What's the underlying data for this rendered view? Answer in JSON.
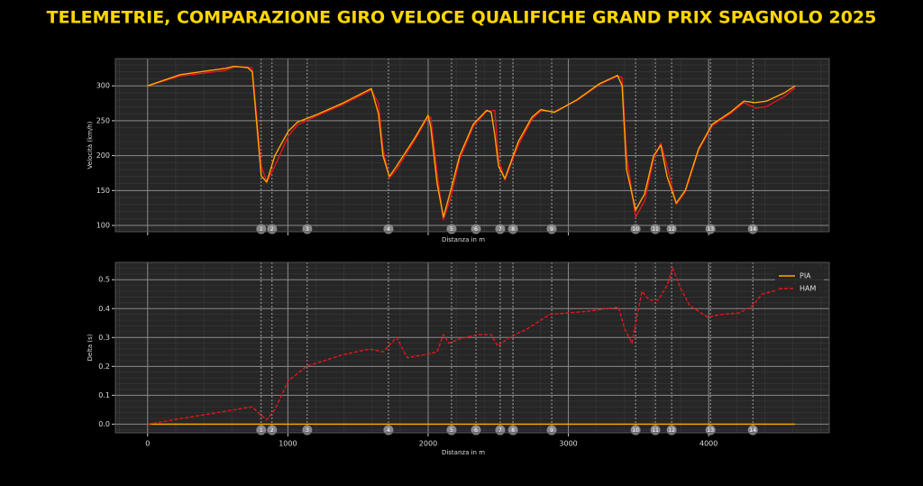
{
  "title": "TELEMETRIE, COMPARAZIONE GIRO VELOCE QUALIFICHE GRAND PRIX SPAGNOLO 2025",
  "corners": {
    "numbers": [
      1,
      2,
      3,
      4,
      5,
      6,
      7,
      8,
      9,
      10,
      11,
      12,
      13,
      14
    ],
    "distances": [
      810,
      887,
      1138,
      1717,
      2167,
      2341,
      2514,
      2605,
      2881,
      3479,
      3620,
      3736,
      4013,
      4315
    ]
  },
  "chart_data": [
    {
      "type": "line",
      "y_label": "Velocità (km/h)",
      "x_label": "Distanza in m",
      "x": [
        0,
        232,
        553,
        617,
        714,
        746,
        810,
        849,
        907,
        1003,
        1068,
        1196,
        1389,
        1595,
        1646,
        1678,
        1723,
        1775,
        1904,
        2000,
        2019,
        2064,
        2109,
        2161,
        2225,
        2322,
        2418,
        2450,
        2475,
        2502,
        2547,
        2643,
        2740,
        2804,
        2900,
        3061,
        3222,
        3350,
        3383,
        3415,
        3479,
        3543,
        3608,
        3659,
        3704,
        3769,
        3833,
        3929,
        4026,
        4154,
        4251,
        4334,
        4411,
        4540,
        4617
      ],
      "series": [
        {
          "name": "HAM",
          "color": "#e8141c",
          "values": [
            300,
            314,
            322,
            327,
            327,
            325,
            185,
            163,
            185,
            228,
            244,
            256,
            273,
            294,
            275,
            210,
            168,
            180,
            222,
            256,
            255,
            175,
            108,
            140,
            195,
            242,
            264,
            264,
            265,
            195,
            165,
            215,
            252,
            264,
            263,
            279,
            302,
            314,
            312,
            200,
            112,
            135,
            195,
            218,
            185,
            130,
            148,
            208,
            243,
            260,
            276,
            268,
            270,
            285,
            297
          ]
        },
        {
          "name": "PIA",
          "color": "#ffa500",
          "values": [
            300,
            316,
            325,
            328,
            326,
            320,
            171,
            162,
            200,
            235,
            248,
            258,
            275,
            296,
            260,
            200,
            170,
            185,
            225,
            258,
            240,
            160,
            112,
            150,
            200,
            245,
            265,
            262,
            230,
            185,
            167,
            220,
            255,
            266,
            262,
            280,
            303,
            315,
            300,
            180,
            122,
            145,
            200,
            215,
            170,
            132,
            150,
            210,
            245,
            262,
            278,
            276,
            278,
            290,
            300
          ]
        }
      ],
      "xlim": [
        -230,
        4860
      ],
      "ylim": [
        91,
        339
      ],
      "xticks": [
        0,
        1000,
        2000,
        3000,
        4000
      ],
      "yticks": [
        100,
        150,
        200,
        250,
        300
      ],
      "grid": true
    },
    {
      "type": "line",
      "y_label": "Delta (s)",
      "x_label": "Distanza in m",
      "x": [
        0,
        746,
        810,
        849,
        907,
        1003,
        1132,
        1389,
        1582,
        1678,
        1775,
        1852,
        1968,
        2064,
        2109,
        2148,
        2225,
        2354,
        2450,
        2495,
        2579,
        2707,
        2868,
        3125,
        3357,
        3402,
        3453,
        3524,
        3576,
        3640,
        3704,
        3743,
        3801,
        3865,
        3994,
        4090,
        4219,
        4315,
        4379,
        4540,
        4617
      ],
      "series": [
        {
          "name": "PIA",
          "color": "#ffa500",
          "linestyle": "solid",
          "values": [
            0,
            0,
            0,
            0,
            0,
            0,
            0,
            0,
            0,
            0,
            0,
            0,
            0,
            0,
            0,
            0,
            0,
            0,
            0,
            0,
            0,
            0,
            0,
            0,
            0,
            0,
            0,
            0,
            0,
            0,
            0,
            0,
            0,
            0,
            0,
            0,
            0,
            0,
            0,
            0,
            0
          ]
        },
        {
          "name": "HAM",
          "color": "#e8141c",
          "linestyle": "dashed",
          "values": [
            0,
            0.06,
            0.03,
            0.015,
            0.05,
            0.15,
            0.2,
            0.24,
            0.26,
            0.25,
            0.3,
            0.23,
            0.24,
            0.25,
            0.31,
            0.28,
            0.295,
            0.31,
            0.31,
            0.27,
            0.3,
            0.33,
            0.38,
            0.39,
            0.405,
            0.33,
            0.28,
            0.46,
            0.43,
            0.43,
            0.48,
            0.54,
            0.47,
            0.41,
            0.37,
            0.38,
            0.385,
            0.41,
            0.45,
            0.47,
            0.49
          ]
        }
      ],
      "xlim": [
        -230,
        4860
      ],
      "ylim": [
        -0.03,
        0.56
      ],
      "xticks": [
        0,
        1000,
        2000,
        3000,
        4000
      ],
      "yticks": [
        {
          "value": 0,
          "label": "0.0"
        },
        0.1,
        0.2,
        0.3,
        0.4,
        0.5
      ],
      "grid": true,
      "legend": "upper right"
    }
  ]
}
